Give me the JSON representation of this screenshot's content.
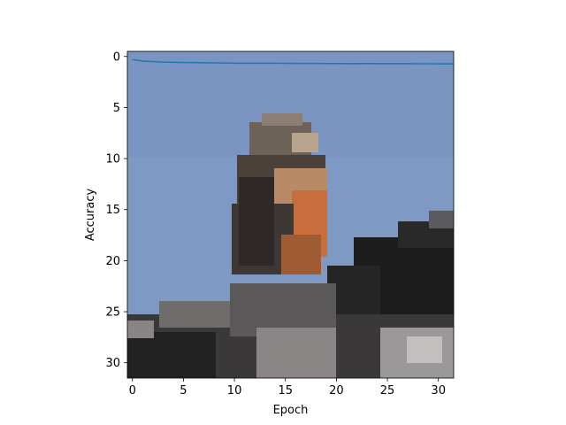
{
  "chart_data": {
    "type": "line",
    "title": "",
    "xlabel": "Epoch",
    "ylabel": "Accuracy",
    "xlim": [
      -0.5,
      31.5
    ],
    "ylim": [
      31.5,
      -0.5
    ],
    "y_inverted": true,
    "grid": false,
    "legend": "none",
    "xticks": [
      0,
      5,
      10,
      15,
      20,
      25,
      30
    ],
    "yticks": [
      0,
      5,
      10,
      15,
      20,
      25,
      30
    ],
    "background_image": "pixelated-photo-of-bird-perched-on-rocks-under-blue-sky",
    "series": [
      {
        "color": "#1f77b4",
        "x": [
          0,
          1,
          2,
          3,
          4,
          5,
          6,
          7,
          8,
          9,
          10,
          11,
          12,
          13,
          14,
          15,
          16,
          17,
          18,
          19,
          20,
          21,
          22,
          23,
          24,
          25,
          26,
          27,
          28,
          29,
          30,
          31,
          32
        ],
        "y": [
          0.3,
          0.45,
          0.5,
          0.55,
          0.57,
          0.6,
          0.6,
          0.62,
          0.63,
          0.64,
          0.66,
          0.66,
          0.66,
          0.66,
          0.66,
          0.67,
          0.68,
          0.68,
          0.68,
          0.69,
          0.69,
          0.7,
          0.7,
          0.69,
          0.7,
          0.7,
          0.7,
          0.7,
          0.71,
          0.71,
          0.72,
          0.72,
          0.73
        ]
      }
    ]
  }
}
